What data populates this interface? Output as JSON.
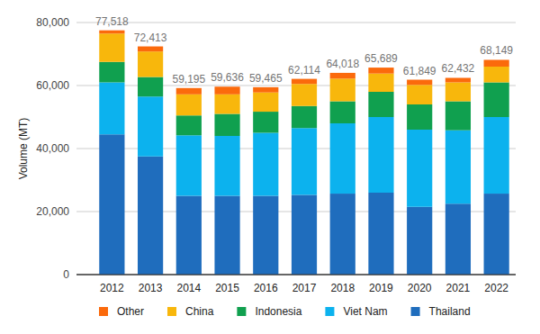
{
  "chart_data": {
    "type": "bar",
    "stacked": true,
    "grid": true,
    "legend": "bottom",
    "y_label": "Volume (MT)",
    "categories": [
      "2012",
      "2013",
      "2014",
      "2015",
      "2016",
      "2017",
      "2018",
      "2019",
      "2020",
      "2021",
      "2022"
    ],
    "series": [
      {
        "name": "Thailand",
        "color": "#1f6dbd",
        "values": [
          44500,
          37500,
          25000,
          25000,
          25000,
          25300,
          25700,
          26000,
          21500,
          22500,
          25700
        ]
      },
      {
        "name": "Viet Nam",
        "color": "#0cb2ee",
        "values": [
          16500,
          19000,
          19200,
          19000,
          20000,
          21200,
          22300,
          24000,
          24500,
          23300,
          24300
        ]
      },
      {
        "name": "Indonesia",
        "color": "#10a04f",
        "values": [
          6500,
          6200,
          6300,
          7000,
          6700,
          7000,
          7000,
          8000,
          8000,
          9200,
          11000
        ]
      },
      {
        "name": "China",
        "color": "#f8b70c",
        "values": [
          9000,
          8100,
          6700,
          6200,
          6100,
          7000,
          7200,
          5800,
          6200,
          6000,
          5000
        ]
      },
      {
        "name": "Other",
        "color": "#fb6a0c",
        "values": [
          1018,
          1613,
          1995,
          2436,
          1665,
          1614,
          1818,
          1889,
          1649,
          1432,
          2149
        ]
      }
    ],
    "totals": [
      77518,
      72413,
      59195,
      59636,
      59465,
      62114,
      64018,
      65689,
      61849,
      62432,
      68149
    ],
    "total_labels": [
      "77,518",
      "72,413",
      "59,195",
      "59,636",
      "59,465",
      "62,114",
      "64,018",
      "65,689",
      "61,849",
      "62,432",
      "68,149"
    ],
    "ylim": [
      0,
      80000
    ],
    "yticks": [
      0,
      {
        "value": 20000,
        "label": "20,000"
      },
      {
        "value": 40000,
        "label": "40,000"
      },
      {
        "value": 60000,
        "label": "60,000"
      },
      {
        "value": 80000,
        "label": "80,000"
      }
    ]
  }
}
